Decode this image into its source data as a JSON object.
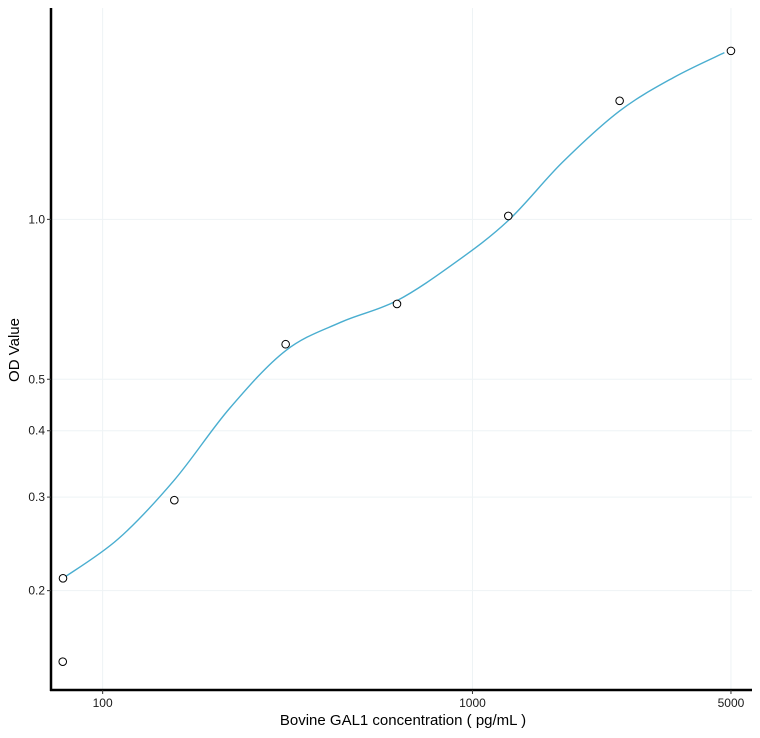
{
  "chart_data": {
    "type": "scatter",
    "title": "",
    "xlabel": "Bovine GAL1 concentration ( pg/mL )",
    "ylabel": "OD Value",
    "x_scale": "log10",
    "y_scale": "log10",
    "xlim": [
      72.5,
      5700
    ],
    "ylim": [
      0.13,
      2.5
    ],
    "x_ticks": [
      100,
      1000,
      5000
    ],
    "x_tick_labels": [
      "100",
      "1000",
      "5000"
    ],
    "y_ticks": [
      0.2,
      0.3,
      0.4,
      0.5,
      1.0
    ],
    "y_tick_labels": [
      "0.2",
      "0.3",
      "0.4",
      "0.5",
      "1.0"
    ],
    "grid": true,
    "series": [
      {
        "points": [
          {
            "x": 78,
            "y": 0.147
          },
          {
            "x": 78.125,
            "y": 0.211
          },
          {
            "x": 156.25,
            "y": 0.296
          },
          {
            "x": 312.5,
            "y": 0.582
          },
          {
            "x": 625,
            "y": 0.693
          },
          {
            "x": 1250,
            "y": 1.015
          },
          {
            "x": 2500,
            "y": 1.672
          },
          {
            "x": 5000,
            "y": 2.076
          }
        ]
      }
    ],
    "fit_curve": {
      "color": "#4aaed0",
      "points": [
        {
          "x": 78.125,
          "y": 0.211
        },
        {
          "x": 110,
          "y": 0.25
        },
        {
          "x": 156.25,
          "y": 0.323
        },
        {
          "x": 220,
          "y": 0.44
        },
        {
          "x": 312.5,
          "y": 0.566
        },
        {
          "x": 440,
          "y": 0.64
        },
        {
          "x": 625,
          "y": 0.703
        },
        {
          "x": 900,
          "y": 0.83
        },
        {
          "x": 1250,
          "y": 0.995
        },
        {
          "x": 1750,
          "y": 1.28
        },
        {
          "x": 2500,
          "y": 1.6
        },
        {
          "x": 3500,
          "y": 1.85
        },
        {
          "x": 4800,
          "y": 2.06
        }
      ]
    },
    "colors": {
      "curve": "#4aaed0",
      "marker_stroke": "#000000",
      "grid": "#eef3f5",
      "axis": "#000000"
    }
  }
}
